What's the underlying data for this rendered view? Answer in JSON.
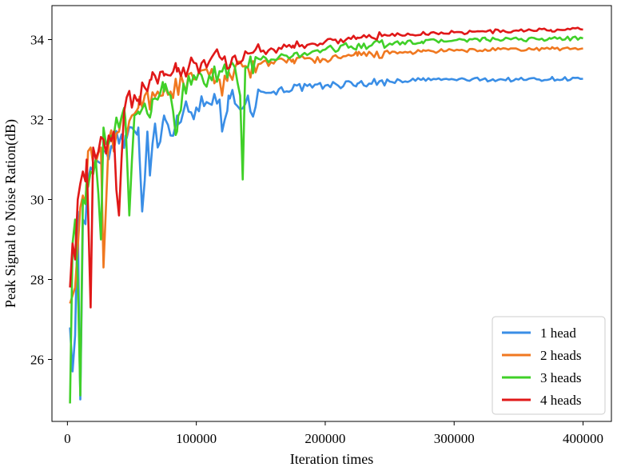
{
  "chart_data": {
    "type": "line",
    "xlabel": "Iteration times",
    "ylabel": "Peak Signal to Noise Ration(dB)",
    "xlim": [
      -12000,
      422000
    ],
    "ylim": [
      24.45,
      34.85
    ],
    "xticks": [
      0,
      100000,
      200000,
      300000,
      400000
    ],
    "xtick_labels": [
      "0",
      "100000",
      "200000",
      "300000",
      "400000"
    ],
    "yticks": [
      26,
      28,
      30,
      32,
      34
    ],
    "ytick_labels": [
      "26",
      "28",
      "30",
      "32",
      "34"
    ],
    "grid": false,
    "legend": "bottom-right",
    "series": [
      {
        "name": "1 head",
        "color": "#3a8ee6",
        "anchors": [
          [
            2000,
            26.8
          ],
          [
            4000,
            25.7
          ],
          [
            6000,
            26.6
          ],
          [
            8000,
            29.7
          ],
          [
            9000,
            27.0
          ],
          [
            10000,
            25.0
          ],
          [
            12000,
            29.5
          ],
          [
            15000,
            30.0
          ],
          [
            18000,
            30.8
          ],
          [
            22000,
            31.0
          ],
          [
            26000,
            30.9
          ],
          [
            30000,
            31.2
          ],
          [
            35000,
            31.3
          ],
          [
            40000,
            31.4
          ],
          [
            45000,
            31.6
          ],
          [
            50000,
            31.8
          ],
          [
            55000,
            31.8
          ],
          [
            58000,
            29.7
          ],
          [
            62000,
            31.7
          ],
          [
            64000,
            30.6
          ],
          [
            68000,
            31.9
          ],
          [
            70000,
            31.3
          ],
          [
            75000,
            32.1
          ],
          [
            80000,
            31.6
          ],
          [
            85000,
            32.1
          ],
          [
            90000,
            32.2
          ],
          [
            100000,
            32.3
          ],
          [
            110000,
            32.4
          ],
          [
            118000,
            32.5
          ],
          [
            120000,
            31.7
          ],
          [
            125000,
            32.6
          ],
          [
            130000,
            32.4
          ],
          [
            140000,
            32.6
          ],
          [
            142000,
            32.2
          ],
          [
            150000,
            32.7
          ],
          [
            160000,
            32.7
          ],
          [
            175000,
            32.8
          ],
          [
            190000,
            32.8
          ],
          [
            200000,
            32.85
          ],
          [
            225000,
            32.9
          ],
          [
            250000,
            32.95
          ],
          [
            275000,
            33.0
          ],
          [
            300000,
            33.0
          ],
          [
            325000,
            33.0
          ],
          [
            350000,
            33.0
          ],
          [
            375000,
            33.02
          ],
          [
            400000,
            33.02
          ]
        ]
      },
      {
        "name": "2 heads",
        "color": "#f07820",
        "anchors": [
          [
            2000,
            27.4
          ],
          [
            4000,
            27.6
          ],
          [
            6000,
            27.8
          ],
          [
            8000,
            28.8
          ],
          [
            10000,
            29.8
          ],
          [
            12000,
            30.1
          ],
          [
            15000,
            30.5
          ],
          [
            18000,
            31.3
          ],
          [
            22000,
            30.9
          ],
          [
            26000,
            31.3
          ],
          [
            28000,
            28.3
          ],
          [
            32000,
            31.5
          ],
          [
            36000,
            31.2
          ],
          [
            40000,
            31.7
          ],
          [
            45000,
            31.9
          ],
          [
            50000,
            32.1
          ],
          [
            55000,
            32.3
          ],
          [
            60000,
            32.6
          ],
          [
            65000,
            32.5
          ],
          [
            70000,
            32.7
          ],
          [
            75000,
            32.8
          ],
          [
            80000,
            32.7
          ],
          [
            90000,
            32.9
          ],
          [
            100000,
            33.0
          ],
          [
            110000,
            33.1
          ],
          [
            118000,
            33.0
          ],
          [
            120000,
            32.6
          ],
          [
            125000,
            33.2
          ],
          [
            130000,
            33.3
          ],
          [
            140000,
            33.3
          ],
          [
            150000,
            33.4
          ],
          [
            160000,
            33.4
          ],
          [
            175000,
            33.5
          ],
          [
            190000,
            33.5
          ],
          [
            200000,
            33.5
          ],
          [
            225000,
            33.6
          ],
          [
            250000,
            33.65
          ],
          [
            275000,
            33.7
          ],
          [
            300000,
            33.72
          ],
          [
            325000,
            33.74
          ],
          [
            350000,
            33.75
          ],
          [
            375000,
            33.77
          ],
          [
            400000,
            33.78
          ]
        ]
      },
      {
        "name": "3 heads",
        "color": "#40d028",
        "anchors": [
          [
            2000,
            24.9
          ],
          [
            4000,
            28.9
          ],
          [
            6000,
            29.5
          ],
          [
            8000,
            28.0
          ],
          [
            10000,
            25.1
          ],
          [
            12000,
            30.0
          ],
          [
            15000,
            30.5
          ],
          [
            18000,
            30.7
          ],
          [
            22000,
            31.0
          ],
          [
            26000,
            29.0
          ],
          [
            28000,
            31.8
          ],
          [
            32000,
            31.4
          ],
          [
            36000,
            31.6
          ],
          [
            40000,
            31.8
          ],
          [
            45000,
            32.0
          ],
          [
            48000,
            29.6
          ],
          [
            52000,
            32.1
          ],
          [
            55000,
            32.2
          ],
          [
            60000,
            32.4
          ],
          [
            65000,
            32.2
          ],
          [
            70000,
            32.5
          ],
          [
            75000,
            32.7
          ],
          [
            80000,
            32.6
          ],
          [
            85000,
            31.7
          ],
          [
            90000,
            32.9
          ],
          [
            100000,
            33.0
          ],
          [
            110000,
            33.1
          ],
          [
            120000,
            33.2
          ],
          [
            130000,
            33.3
          ],
          [
            134000,
            32.6
          ],
          [
            136000,
            30.5
          ],
          [
            138000,
            33.3
          ],
          [
            145000,
            33.4
          ],
          [
            150000,
            33.5
          ],
          [
            160000,
            33.5
          ],
          [
            175000,
            33.6
          ],
          [
            190000,
            33.7
          ],
          [
            200000,
            33.75
          ],
          [
            225000,
            33.85
          ],
          [
            250000,
            33.9
          ],
          [
            275000,
            33.95
          ],
          [
            300000,
            33.98
          ],
          [
            325000,
            34.0
          ],
          [
            350000,
            34.0
          ],
          [
            375000,
            34.02
          ],
          [
            400000,
            34.03
          ]
        ]
      },
      {
        "name": "4 heads",
        "color": "#e01818",
        "anchors": [
          [
            2000,
            27.8
          ],
          [
            4000,
            28.9
          ],
          [
            6000,
            28.5
          ],
          [
            8000,
            30.0
          ],
          [
            10000,
            30.4
          ],
          [
            12000,
            30.7
          ],
          [
            15000,
            31.0
          ],
          [
            18000,
            27.3
          ],
          [
            20000,
            31.3
          ],
          [
            24000,
            31.2
          ],
          [
            28000,
            31.5
          ],
          [
            32000,
            31.6
          ],
          [
            36000,
            31.7
          ],
          [
            40000,
            29.6
          ],
          [
            44000,
            32.2
          ],
          [
            50000,
            32.3
          ],
          [
            55000,
            32.5
          ],
          [
            60000,
            32.8
          ],
          [
            65000,
            33.0
          ],
          [
            70000,
            32.9
          ],
          [
            75000,
            33.1
          ],
          [
            80000,
            33.1
          ],
          [
            85000,
            33.2
          ],
          [
            90000,
            33.3
          ],
          [
            100000,
            33.4
          ],
          [
            110000,
            33.45
          ],
          [
            120000,
            33.5
          ],
          [
            130000,
            33.6
          ],
          [
            140000,
            33.65
          ],
          [
            150000,
            33.7
          ],
          [
            160000,
            33.75
          ],
          [
            175000,
            33.85
          ],
          [
            190000,
            33.9
          ],
          [
            200000,
            33.95
          ],
          [
            225000,
            34.05
          ],
          [
            250000,
            34.1
          ],
          [
            275000,
            34.15
          ],
          [
            300000,
            34.18
          ],
          [
            325000,
            34.2
          ],
          [
            350000,
            34.22
          ],
          [
            375000,
            34.24
          ],
          [
            400000,
            34.25
          ]
        ]
      }
    ]
  }
}
